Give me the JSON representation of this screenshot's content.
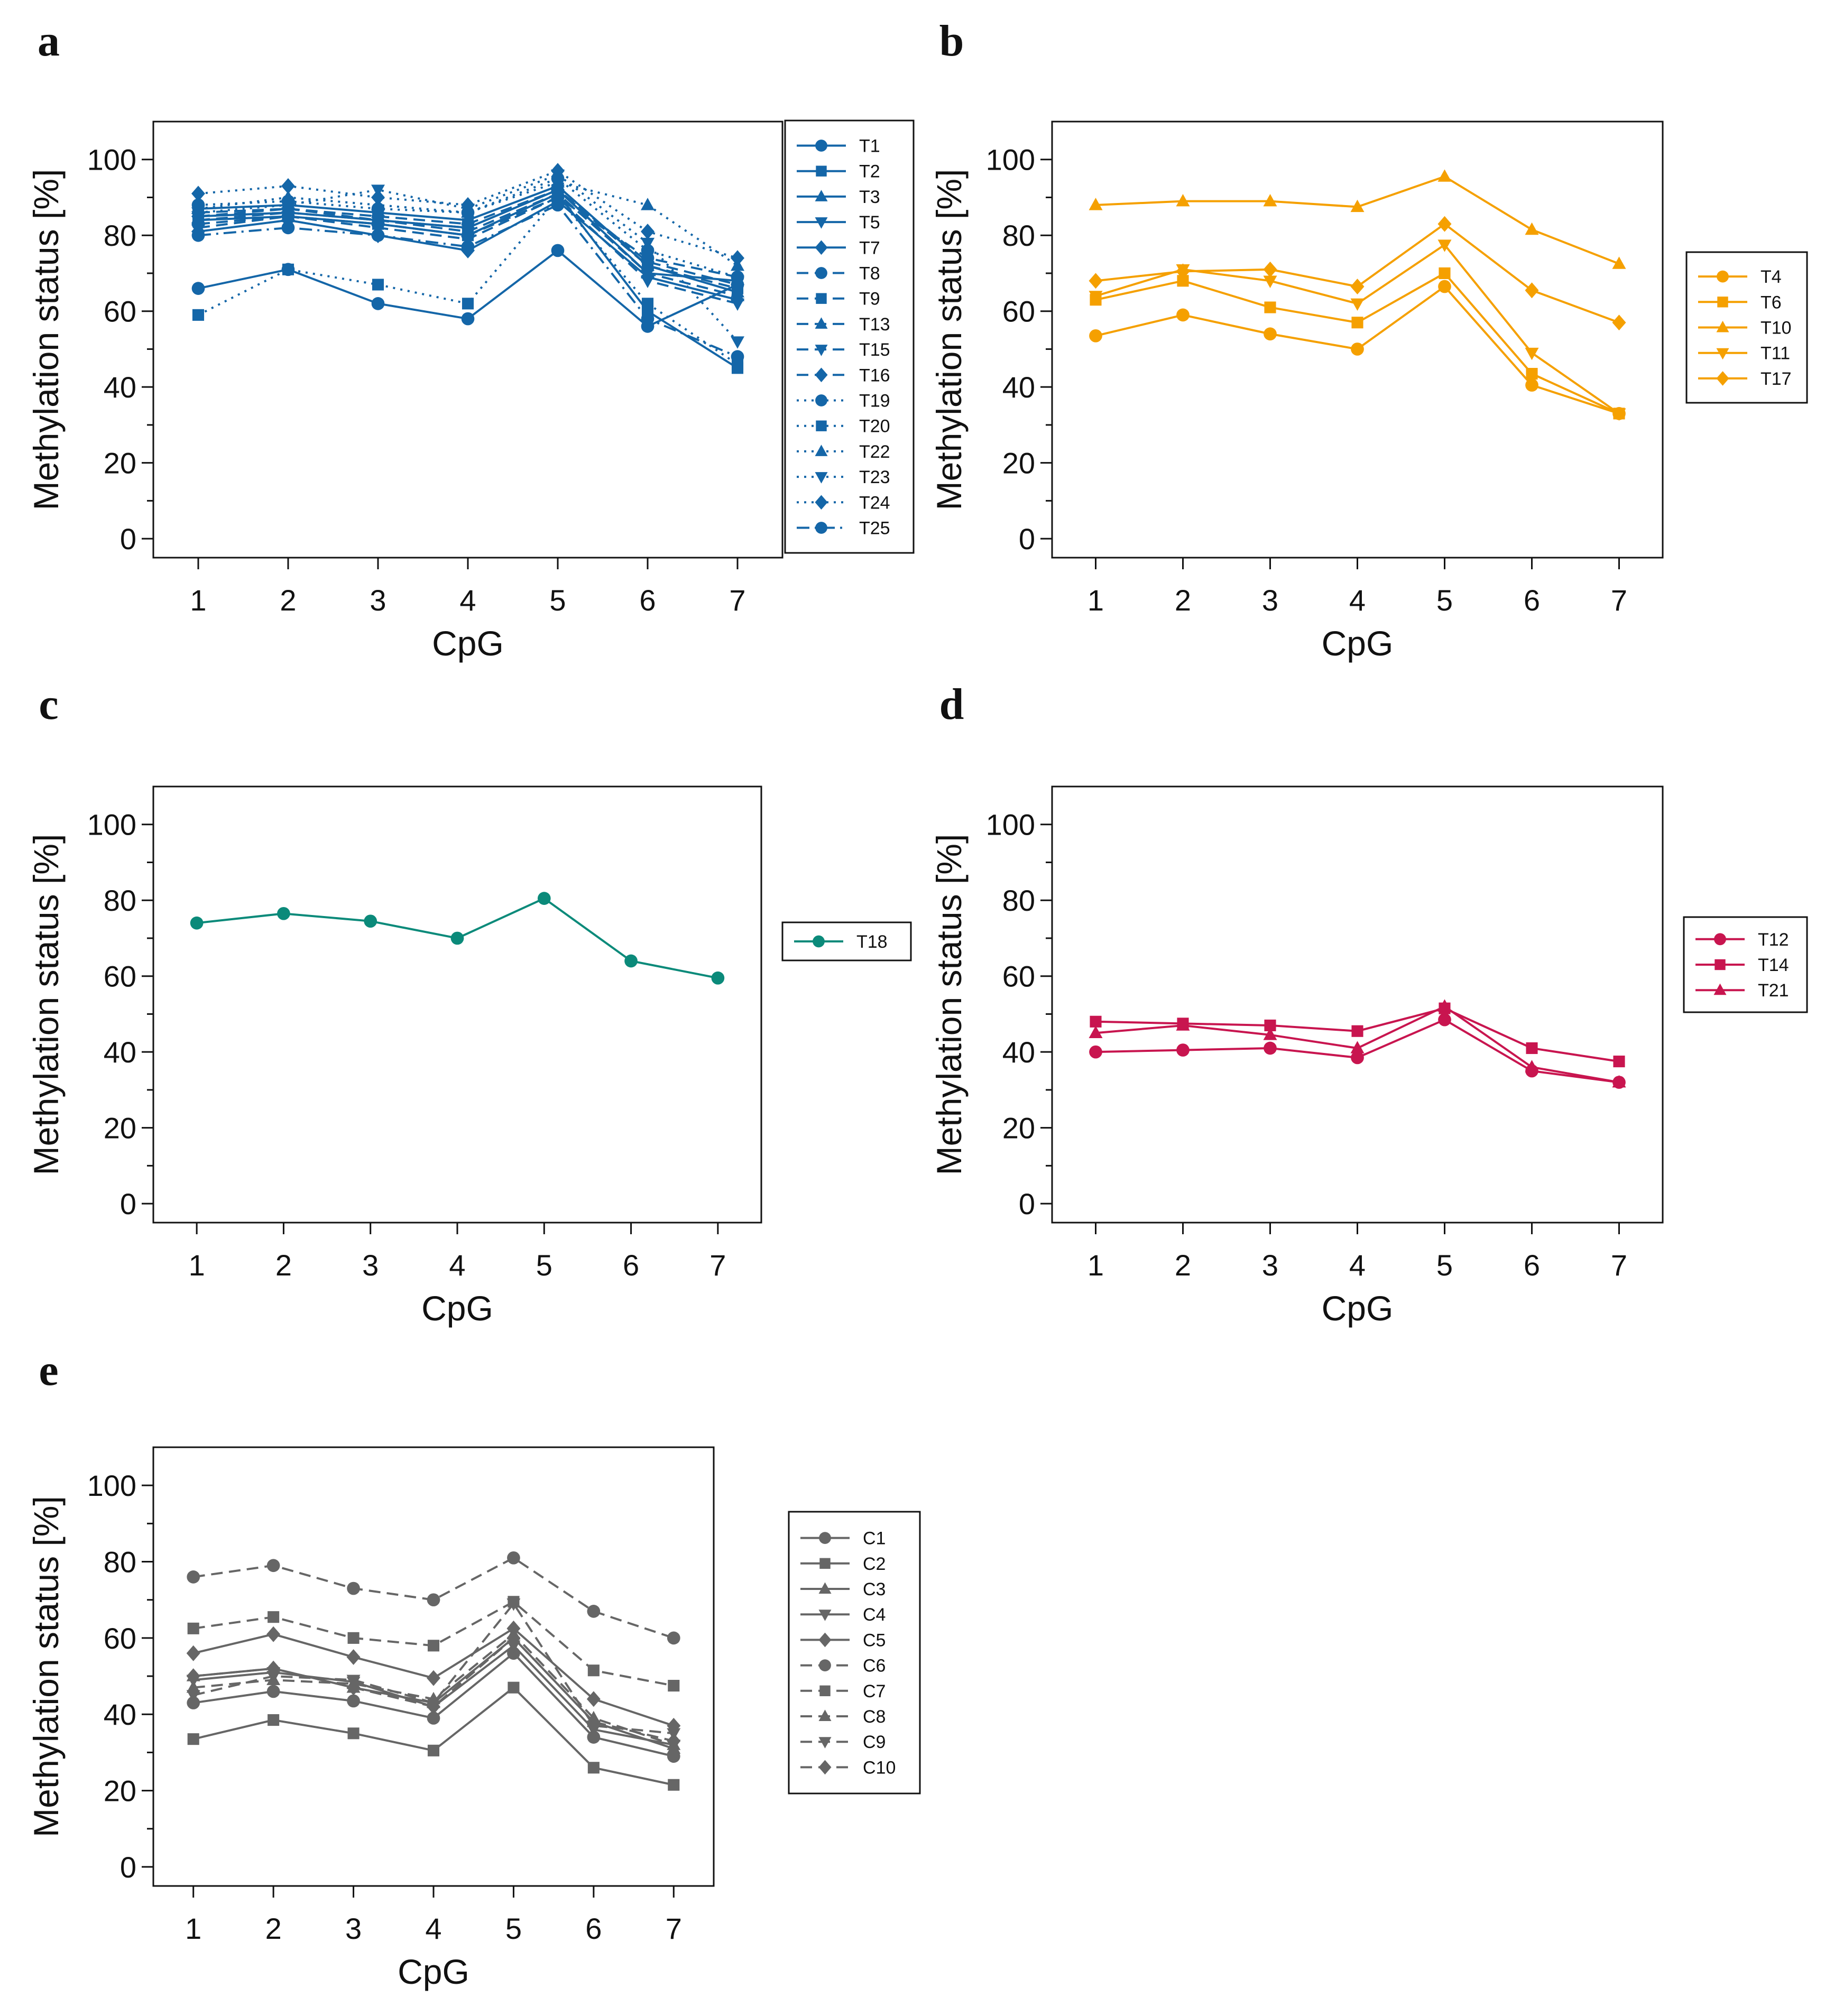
{
  "chart_data": [
    {
      "panel": "a",
      "type": "line",
      "xlabel": "CpG",
      "ylabel": "Methylation status [%]",
      "categories": [
        "1",
        "2",
        "3",
        "4",
        "5",
        "6",
        "7"
      ],
      "x_ticks": [
        "1",
        "2",
        "3",
        "4",
        "5",
        "6",
        "7"
      ],
      "y_ticks": [
        "0",
        "20",
        "40",
        "60",
        "80",
        "100"
      ],
      "ylim": [
        -5,
        110
      ],
      "color": "#1466a8",
      "legend_position": "right",
      "series": [
        {
          "name": "T1",
          "marker": "circle",
          "dash": "solid",
          "values": [
            66,
            71,
            62,
            58,
            76,
            56,
            67
          ]
        },
        {
          "name": "T2",
          "marker": "square",
          "dash": "solid",
          "values": [
            84,
            85,
            83,
            80,
            91,
            60,
            45
          ]
        },
        {
          "name": "T3",
          "marker": "triangle",
          "dash": "solid",
          "values": [
            87,
            88,
            86,
            84,
            93,
            72,
            65
          ]
        },
        {
          "name": "T5",
          "marker": "tri-down",
          "dash": "solid",
          "values": [
            85,
            86,
            84,
            82,
            92,
            70,
            68
          ]
        },
        {
          "name": "T7",
          "marker": "diamond",
          "dash": "solid",
          "values": [
            81,
            84,
            80,
            76,
            89,
            69,
            63
          ]
        },
        {
          "name": "T8",
          "marker": "circle",
          "dash": "dashed",
          "values": [
            83,
            85,
            83,
            80,
            90,
            74,
            69
          ]
        },
        {
          "name": "T9",
          "marker": "square",
          "dash": "dashed",
          "values": [
            86,
            87,
            85,
            83,
            92,
            72,
            66
          ]
        },
        {
          "name": "T13",
          "marker": "triangle",
          "dash": "dashed",
          "values": [
            84,
            86,
            84,
            81,
            91,
            70,
            64
          ]
        },
        {
          "name": "T15",
          "marker": "tri-down",
          "dash": "dashed",
          "values": [
            82,
            85,
            82,
            79,
            90,
            68,
            62
          ]
        },
        {
          "name": "T16",
          "marker": "diamond",
          "dash": "dashed",
          "values": [
            85,
            87,
            84,
            82,
            92,
            73,
            67
          ]
        },
        {
          "name": "T19",
          "marker": "circle",
          "dash": "dotted",
          "values": [
            88,
            89,
            87,
            86,
            95,
            76,
            69
          ]
        },
        {
          "name": "T20",
          "marker": "square",
          "dash": "dotted",
          "values": [
            59,
            71,
            67,
            62,
            90,
            62,
            46
          ]
        },
        {
          "name": "T22",
          "marker": "triangle",
          "dash": "dotted",
          "values": [
            87,
            90,
            88,
            86,
            94,
            88,
            72
          ]
        },
        {
          "name": "T23",
          "marker": "tri-down",
          "dash": "dotted",
          "values": [
            86,
            88,
            92,
            87,
            96,
            78,
            52
          ]
        },
        {
          "name": "T24",
          "marker": "diamond",
          "dash": "dotted",
          "values": [
            91,
            93,
            90,
            88,
            97,
            81,
            74
          ]
        },
        {
          "name": "T25",
          "marker": "circle",
          "dash": "dashdot",
          "values": [
            80,
            82,
            80,
            77,
            88,
            58,
            48
          ]
        }
      ]
    },
    {
      "panel": "b",
      "type": "line",
      "xlabel": "CpG",
      "ylabel": "Methylation status [%]",
      "categories": [
        "1",
        "2",
        "3",
        "4",
        "5",
        "6",
        "7"
      ],
      "x_ticks": [
        "1",
        "2",
        "3",
        "4",
        "5",
        "6",
        "7"
      ],
      "y_ticks": [
        "0",
        "20",
        "40",
        "60",
        "80",
        "100"
      ],
      "ylim": [
        -5,
        110
      ],
      "color": "#f5a000",
      "legend_position": "right",
      "series": [
        {
          "name": "T4",
          "marker": "circle",
          "dash": "solid",
          "values": [
            53.5,
            59,
            54,
            50,
            66.5,
            40.5,
            33
          ]
        },
        {
          "name": "T6",
          "marker": "square",
          "dash": "solid",
          "values": [
            63,
            68,
            61,
            57,
            70,
            43.5,
            33
          ]
        },
        {
          "name": "T10",
          "marker": "triangle",
          "dash": "solid",
          "values": [
            88,
            89,
            89,
            87.5,
            95.5,
            81.5,
            72.5
          ]
        },
        {
          "name": "T11",
          "marker": "tri-down",
          "dash": "solid",
          "values": [
            64,
            71,
            68,
            62,
            77.5,
            49,
            33
          ]
        },
        {
          "name": "T17",
          "marker": "diamond",
          "dash": "solid",
          "values": [
            68,
            70.5,
            71,
            66.5,
            83,
            65.5,
            57
          ]
        }
      ]
    },
    {
      "panel": "c",
      "type": "line",
      "xlabel": "CpG",
      "ylabel": "Methylation status [%]",
      "categories": [
        "1",
        "2",
        "3",
        "4",
        "5",
        "6",
        "7"
      ],
      "x_ticks": [
        "1",
        "2",
        "3",
        "4",
        "5",
        "6",
        "7"
      ],
      "y_ticks": [
        "0",
        "20",
        "40",
        "60",
        "80",
        "100"
      ],
      "ylim": [
        -5,
        110
      ],
      "color": "#0b8a7a",
      "legend_position": "right",
      "series": [
        {
          "name": "T18",
          "marker": "circle",
          "dash": "solid",
          "values": [
            74,
            76.5,
            74.5,
            70,
            80.5,
            64,
            59.5
          ]
        }
      ]
    },
    {
      "panel": "d",
      "type": "line",
      "xlabel": "CpG",
      "ylabel": "Methylation status [%]",
      "categories": [
        "1",
        "2",
        "3",
        "4",
        "5",
        "6",
        "7"
      ],
      "x_ticks": [
        "1",
        "2",
        "3",
        "4",
        "5",
        "6",
        "7"
      ],
      "y_ticks": [
        "0",
        "20",
        "40",
        "60",
        "80",
        "100"
      ],
      "ylim": [
        -5,
        110
      ],
      "color": "#c8154f",
      "legend_position": "right",
      "series": [
        {
          "name": "T12",
          "marker": "circle",
          "dash": "solid",
          "values": [
            40,
            40.5,
            41,
            38.5,
            48.5,
            35,
            32
          ]
        },
        {
          "name": "T14",
          "marker": "square",
          "dash": "solid",
          "values": [
            48,
            47.5,
            47,
            45.5,
            51.5,
            41,
            37.5
          ]
        },
        {
          "name": "T21",
          "marker": "triangle",
          "dash": "solid",
          "values": [
            45,
            47,
            44.5,
            41,
            52,
            36,
            32
          ]
        }
      ]
    },
    {
      "panel": "e",
      "type": "line",
      "xlabel": "CpG",
      "ylabel": "Methylation status [%]",
      "categories": [
        "1",
        "2",
        "3",
        "4",
        "5",
        "6",
        "7"
      ],
      "x_ticks": [
        "1",
        "2",
        "3",
        "4",
        "5",
        "6",
        "7"
      ],
      "y_ticks": [
        "0",
        "20",
        "40",
        "60",
        "80",
        "100"
      ],
      "ylim": [
        -5,
        110
      ],
      "color": "#666666",
      "legend_position": "right",
      "series": [
        {
          "name": "C1",
          "marker": "circle",
          "dash": "solid",
          "values": [
            43,
            46,
            43.5,
            39,
            56,
            34,
            29
          ]
        },
        {
          "name": "C2",
          "marker": "square",
          "dash": "solid",
          "values": [
            33.5,
            38.5,
            35,
            30.5,
            47,
            26,
            21.5
          ]
        },
        {
          "name": "C3",
          "marker": "triangle",
          "dash": "solid",
          "values": [
            50,
            52,
            47,
            43,
            60,
            38,
            31
          ]
        },
        {
          "name": "C4",
          "marker": "tri-down",
          "dash": "solid",
          "values": [
            49,
            51,
            48.5,
            42,
            58,
            36,
            32
          ]
        },
        {
          "name": "C5",
          "marker": "diamond",
          "dash": "solid",
          "values": [
            56,
            61,
            55,
            49.5,
            62.5,
            44,
            37
          ]
        },
        {
          "name": "C6",
          "marker": "circle",
          "dash": "dashed",
          "values": [
            76,
            79,
            73,
            70,
            81,
            67,
            60
          ]
        },
        {
          "name": "C7",
          "marker": "square",
          "dash": "dashed",
          "values": [
            62.5,
            65.5,
            60,
            58,
            69.5,
            51.5,
            47.5
          ]
        },
        {
          "name": "C8",
          "marker": "triangle",
          "dash": "dashed",
          "values": [
            47,
            49,
            48,
            44,
            61,
            39,
            32
          ]
        },
        {
          "name": "C9",
          "marker": "tri-down",
          "dash": "dashed",
          "values": [
            45,
            50,
            49,
            43,
            69,
            37,
            35
          ]
        },
        {
          "name": "C10",
          "marker": "diamond",
          "dash": "dashed",
          "values": [
            50,
            52,
            47,
            42,
            60,
            38,
            33
          ]
        }
      ]
    }
  ]
}
